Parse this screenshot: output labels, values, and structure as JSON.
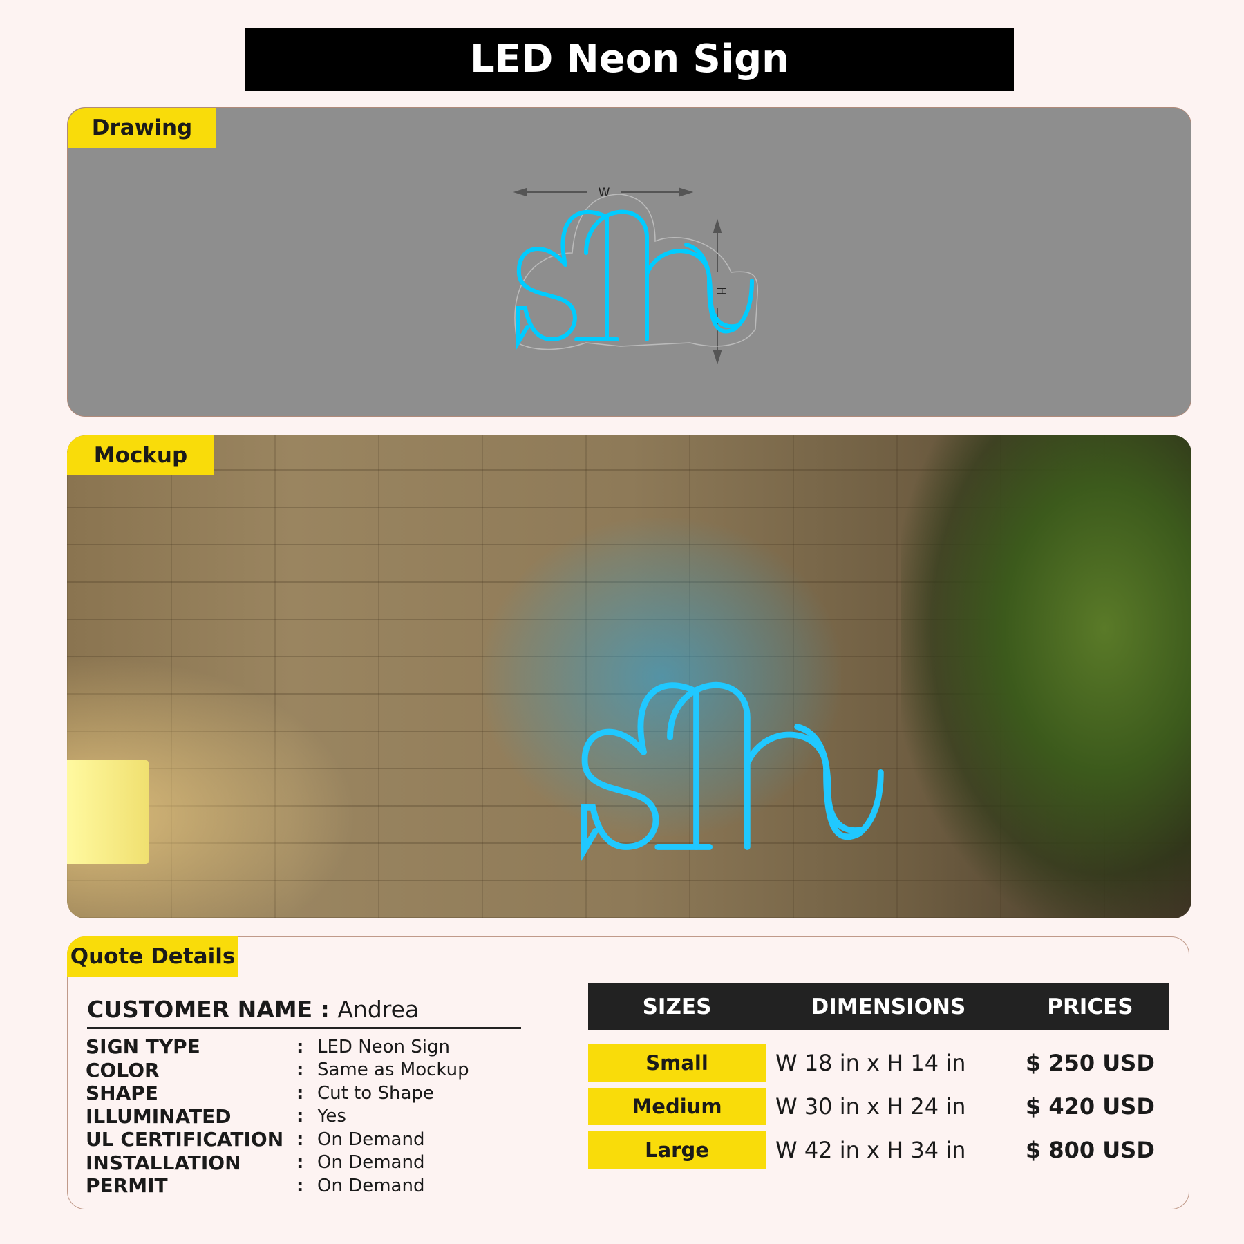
{
  "title": "LED Neon Sign",
  "drawing": {
    "tag": "Drawing",
    "width_label": "W",
    "height_label": "H",
    "sign_text": "sh",
    "neon_color": "#00ccff"
  },
  "mockup": {
    "tag": "Mockup",
    "sign_text": "sh"
  },
  "quote": {
    "tag": "Quote Details",
    "customer_label": "CUSTOMER NAME :",
    "customer_name": "Andrea",
    "specs": [
      {
        "k": "SIGN TYPE",
        "v": "LED Neon Sign"
      },
      {
        "k": "COLOR",
        "v": "Same as Mockup"
      },
      {
        "k": "SHAPE",
        "v": "Cut to Shape"
      },
      {
        "k": "ILLUMINATED",
        "v": "Yes"
      },
      {
        "k": "UL CERTIFICATION",
        "v": "On Demand"
      },
      {
        "k": "INSTALLATION",
        "v": "On Demand"
      },
      {
        "k": "PERMIT",
        "v": "On Demand"
      }
    ],
    "headers": [
      "SIZES",
      "DIMENSIONS",
      "PRICES"
    ],
    "rows": [
      {
        "size": "Small",
        "dim": "W 18 in x H 14 in",
        "price": "$ 250 USD"
      },
      {
        "size": "Medium",
        "dim": "W 30 in x H 24 in",
        "price": "$ 420 USD"
      },
      {
        "size": "Large",
        "dim": "W 42 in x H 34 in",
        "price": "$ 800 USD"
      }
    ]
  }
}
